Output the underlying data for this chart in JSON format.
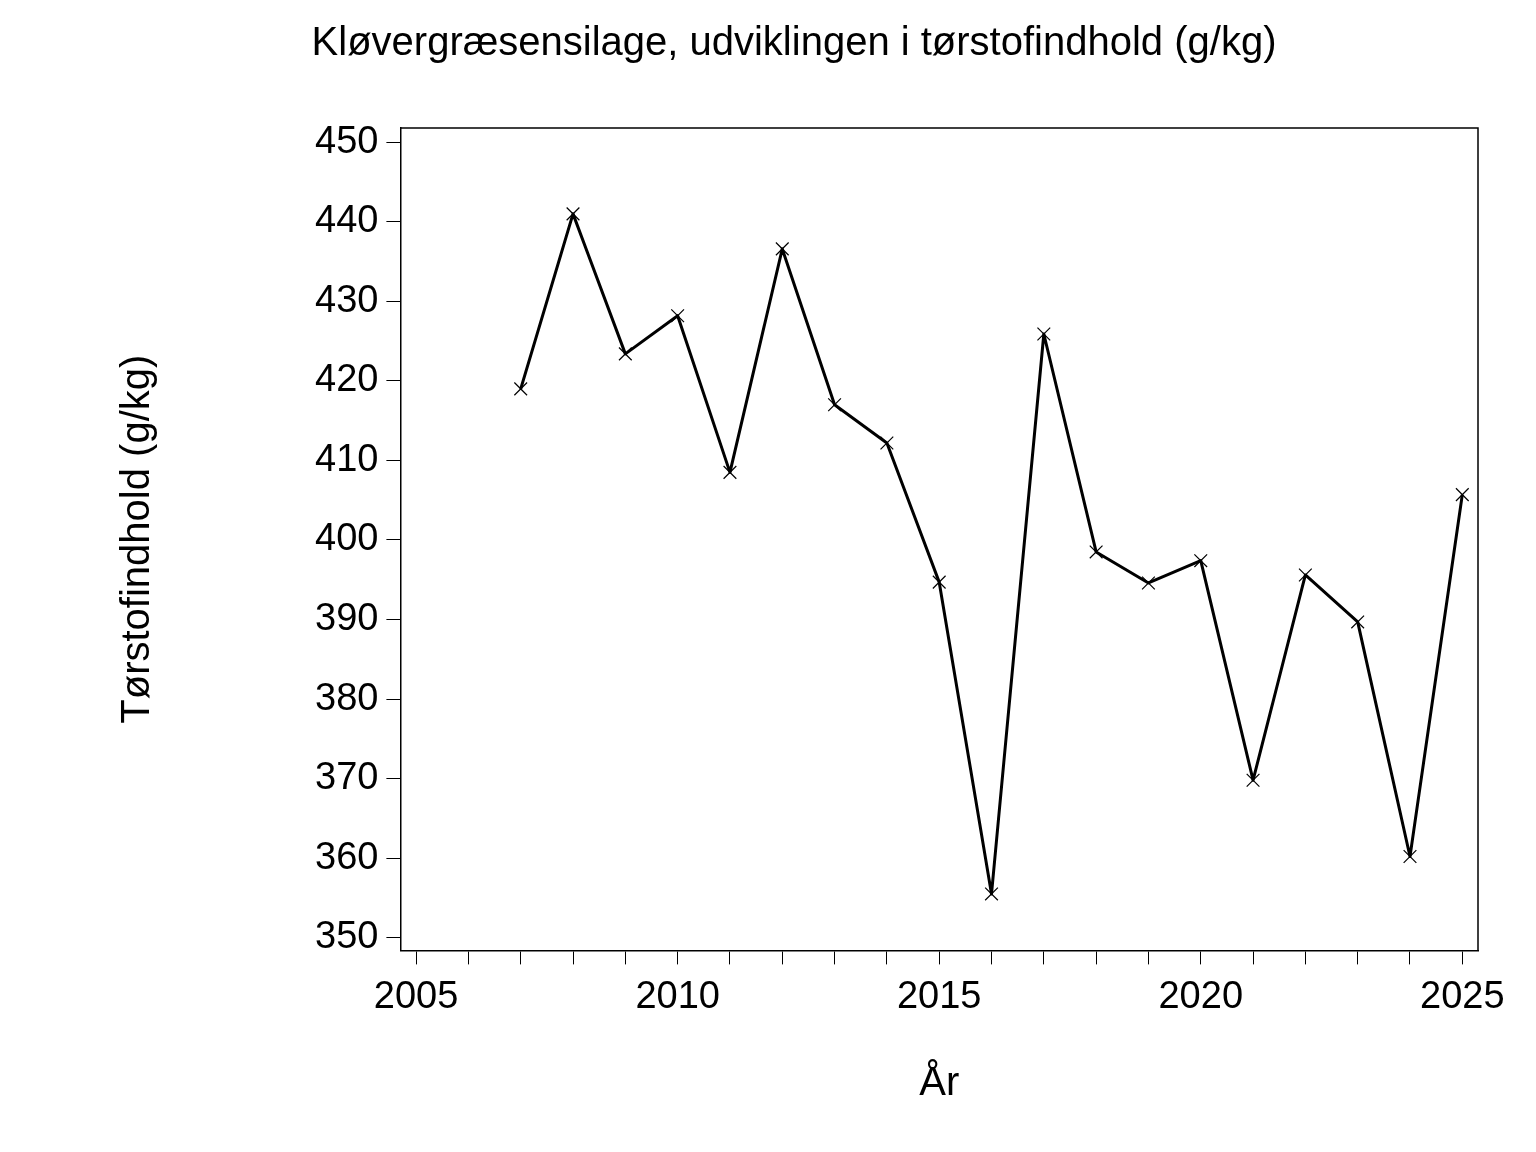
{
  "chart_data": {
    "type": "line",
    "title": "Kløvergræsensilage, udviklingen i tørstofindhold (g/kg)",
    "xlabel": "År",
    "ylabel": "Tørstofindhold (g/kg)",
    "x": [
      2007,
      2008,
      2009,
      2010,
      2011,
      2012,
      2013,
      2014,
      2015,
      2016,
      2017,
      2018,
      2019,
      2020,
      2021,
      2022,
      2023,
      2024,
      2025
    ],
    "series": [
      {
        "color": "#000000",
        "values": [
          419,
          441,
          423.4,
          428.2,
          408.5,
          436.6,
          417,
          412.2,
          394.7,
          355.5,
          425.9,
          398.5,
          394.6,
          397.4,
          369.8,
          395.6,
          389.7,
          360.2,
          405.7
        ]
      }
    ],
    "xlim": [
      2004.7,
      2025.3
    ],
    "ylim": [
      348.4,
      451.8
    ],
    "xticks": [
      2005,
      {
        "value": 2006,
        "label": null
      },
      {
        "value": 2007,
        "label": null
      },
      {
        "value": 2008,
        "label": null
      },
      {
        "value": 2009,
        "label": null
      },
      2010,
      {
        "value": 2011,
        "label": null
      },
      {
        "value": 2012,
        "label": null
      },
      {
        "value": 2013,
        "label": null
      },
      {
        "value": 2014,
        "label": null
      },
      2015,
      {
        "value": 2016,
        "label": null
      },
      {
        "value": 2017,
        "label": null
      },
      {
        "value": 2018,
        "label": null
      },
      {
        "value": 2019,
        "label": null
      },
      2020,
      {
        "value": 2021,
        "label": null
      },
      {
        "value": 2022,
        "label": null
      },
      {
        "value": 2023,
        "label": null
      },
      {
        "value": 2024,
        "label": null
      },
      2025
    ],
    "yticks": [
      350,
      360,
      370,
      380,
      390,
      400,
      410,
      420,
      430,
      440,
      450
    ],
    "grid": false,
    "legend": false,
    "marker": "cross",
    "line_style": "solid"
  }
}
